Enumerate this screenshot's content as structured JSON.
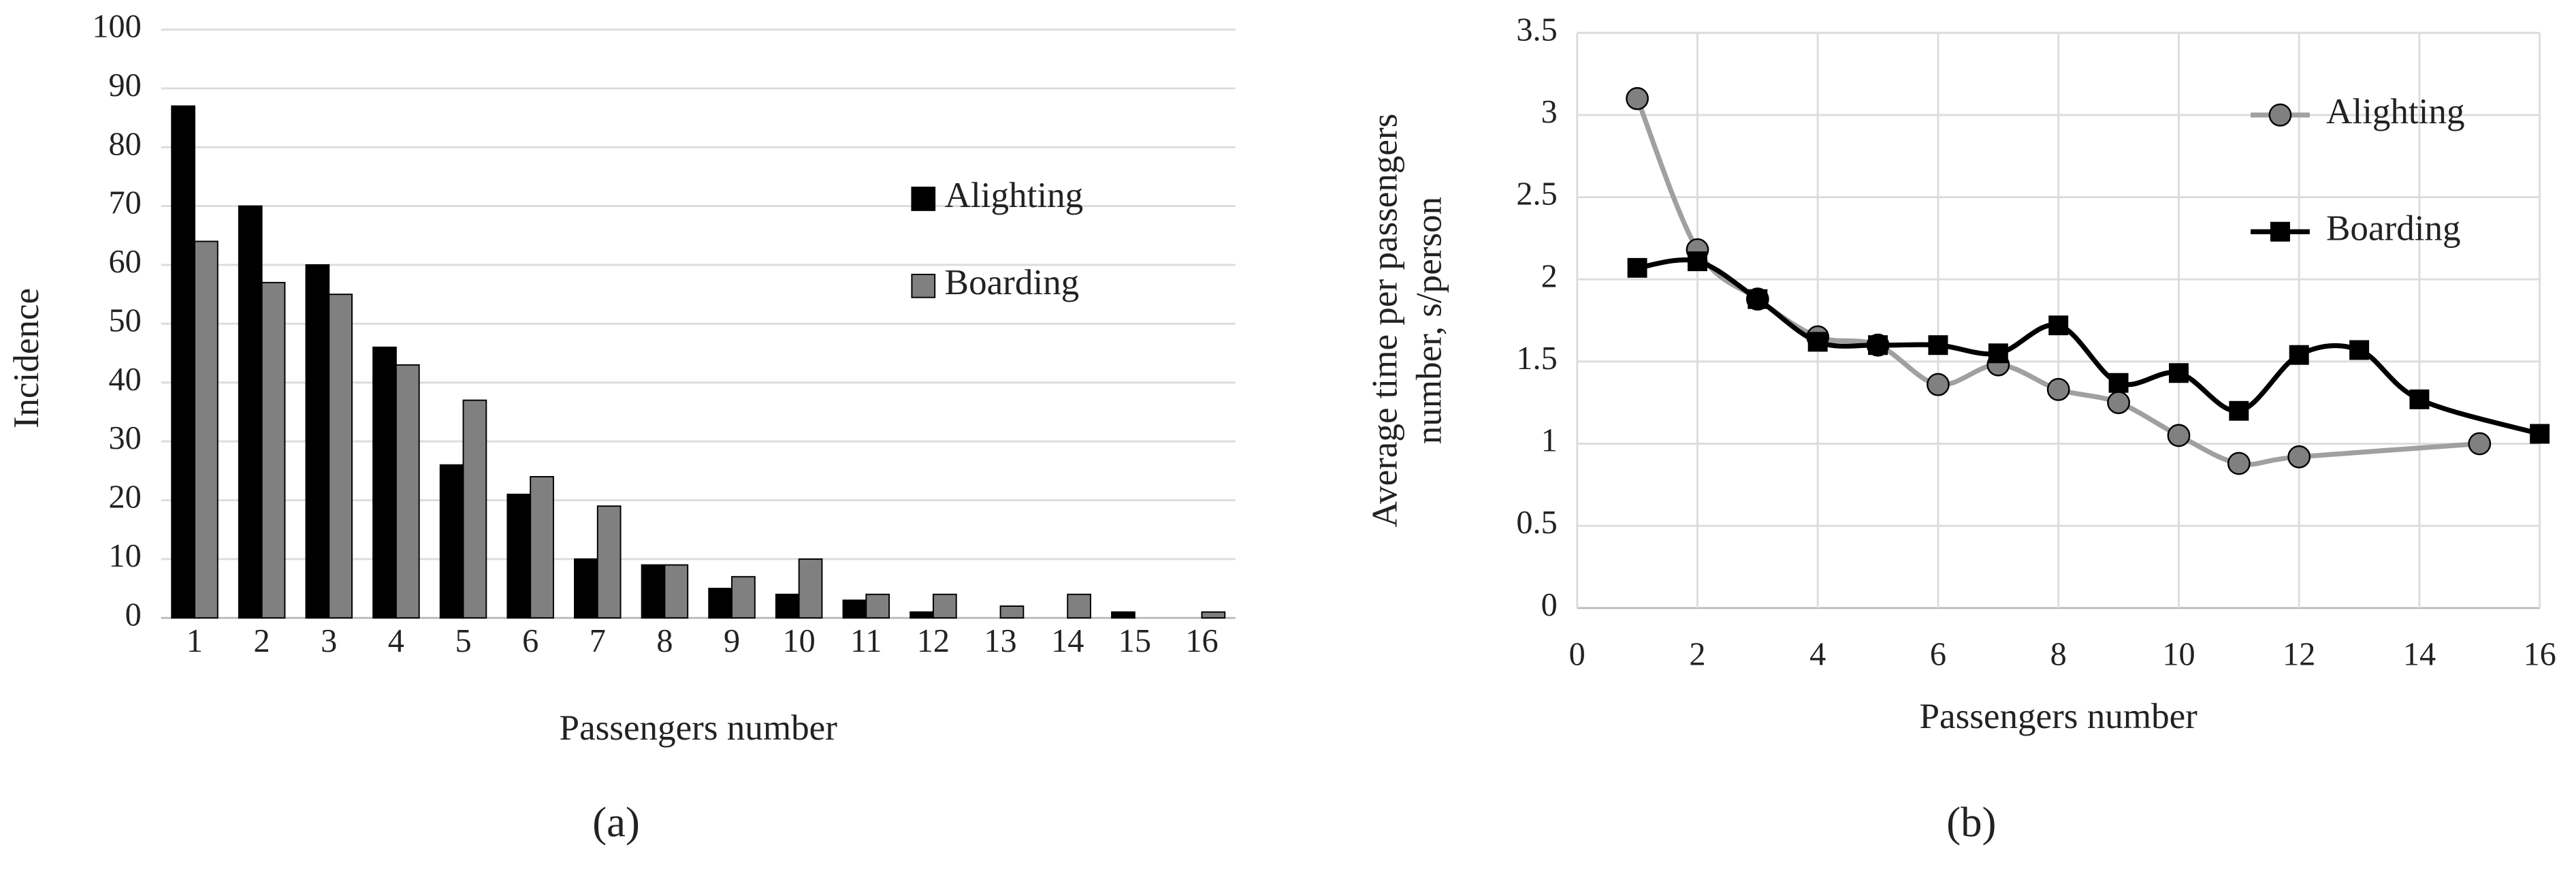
{
  "chart_data": [
    {
      "type": "bar",
      "caption": "(a)",
      "xlabel": "Passengers number",
      "ylabel": "Incidence",
      "categories": [
        "1",
        "2",
        "3",
        "4",
        "5",
        "6",
        "7",
        "8",
        "9",
        "10",
        "11",
        "12",
        "13",
        "14",
        "15",
        "16"
      ],
      "series": [
        {
          "name": "Alighting",
          "color": "#000000",
          "values": [
            87,
            70,
            60,
            46,
            26,
            21,
            10,
            9,
            5,
            4,
            3,
            1,
            0,
            0,
            1,
            0
          ]
        },
        {
          "name": "Boarding",
          "color": "#808080",
          "values": [
            64,
            57,
            55,
            43,
            37,
            24,
            19,
            9,
            7,
            10,
            4,
            4,
            2,
            4,
            0,
            1
          ]
        }
      ],
      "ylim": [
        0,
        100
      ],
      "yticks": [
        0,
        10,
        20,
        30,
        40,
        50,
        60,
        70,
        80,
        90,
        100
      ],
      "grid": true,
      "legend": "right"
    },
    {
      "type": "line",
      "caption": "(b)",
      "xlabel": "Passengers number",
      "ylabel": [
        "Average time per passengers",
        "number, s/person"
      ],
      "series": [
        {
          "name": "Alighting",
          "color": "#a0a0a0",
          "marker": "circle",
          "x": [
            1,
            2,
            3,
            4,
            5,
            6,
            7,
            8,
            9,
            10,
            11,
            12,
            15
          ],
          "values": [
            3.1,
            2.18,
            1.88,
            1.65,
            1.6,
            1.36,
            1.48,
            1.33,
            1.25,
            1.05,
            0.88,
            0.92,
            1.0
          ]
        },
        {
          "name": "Boarding",
          "color": "#000000",
          "marker": "square",
          "x": [
            1,
            2,
            3,
            4,
            5,
            6,
            7,
            8,
            9,
            10,
            11,
            12,
            13,
            14,
            16
          ],
          "values": [
            2.07,
            2.11,
            1.88,
            1.62,
            1.6,
            1.6,
            1.55,
            1.72,
            1.37,
            1.43,
            1.2,
            1.54,
            1.57,
            1.27,
            1.06
          ]
        }
      ],
      "xlim": [
        0,
        16
      ],
      "xticks": [
        0,
        2,
        4,
        6,
        8,
        10,
        12,
        14,
        16
      ],
      "ylim": [
        0,
        3.5
      ],
      "yticks": [
        0,
        0.5,
        1,
        1.5,
        2,
        2.5,
        3,
        3.5
      ],
      "grid": true,
      "legend": "upper right"
    }
  ]
}
